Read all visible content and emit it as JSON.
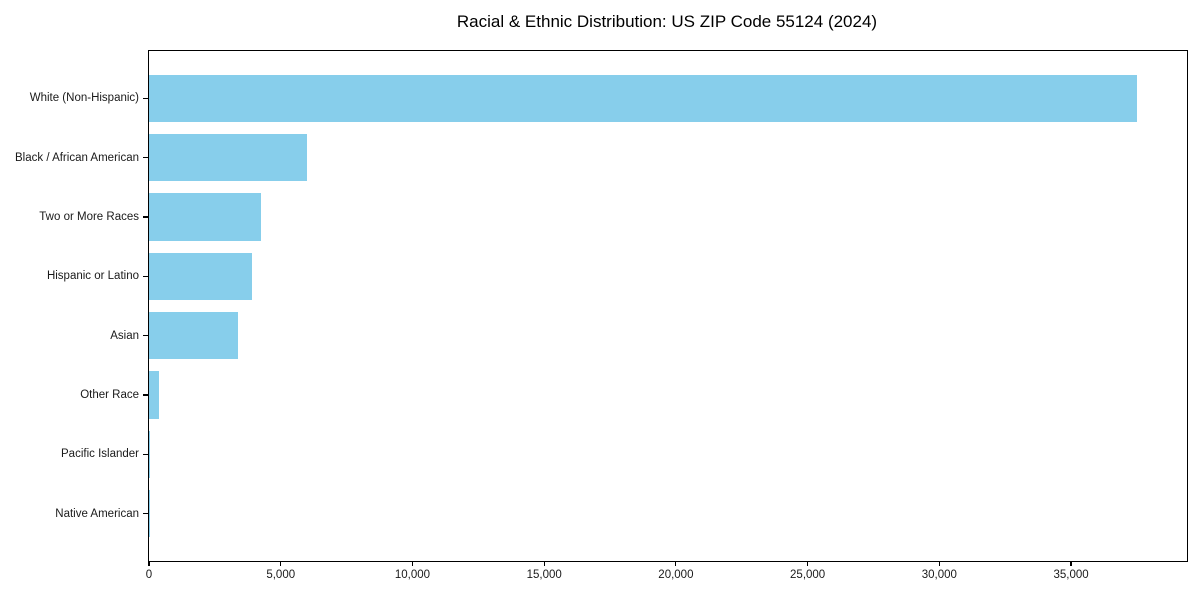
{
  "chart_data": {
    "type": "bar",
    "orientation": "horizontal",
    "title": "Racial & Ethnic Distribution: US ZIP Code 55124 (2024)",
    "categories": [
      "White (Non-Hispanic)",
      "Black / African American",
      "Two or More Races",
      "Hispanic or Latino",
      "Asian",
      "Other Race",
      "Pacific Islander",
      "Native American"
    ],
    "values": [
      37500,
      6000,
      4270,
      3900,
      3360,
      380,
      40,
      10
    ],
    "xlabel": "",
    "ylabel": "",
    "xlim": [
      0,
      39400
    ],
    "xticks": [
      0,
      5000,
      10000,
      15000,
      20000,
      25000,
      30000,
      35000
    ],
    "xtick_labels": [
      "0",
      "5,000",
      "10,000",
      "15,000",
      "20,000",
      "25,000",
      "30,000",
      "35,000"
    ],
    "grid": false,
    "legend_position": "none",
    "bar_color": "#87CEEB",
    "axis_color": "#000000",
    "text_color": "#1a1a1a"
  }
}
